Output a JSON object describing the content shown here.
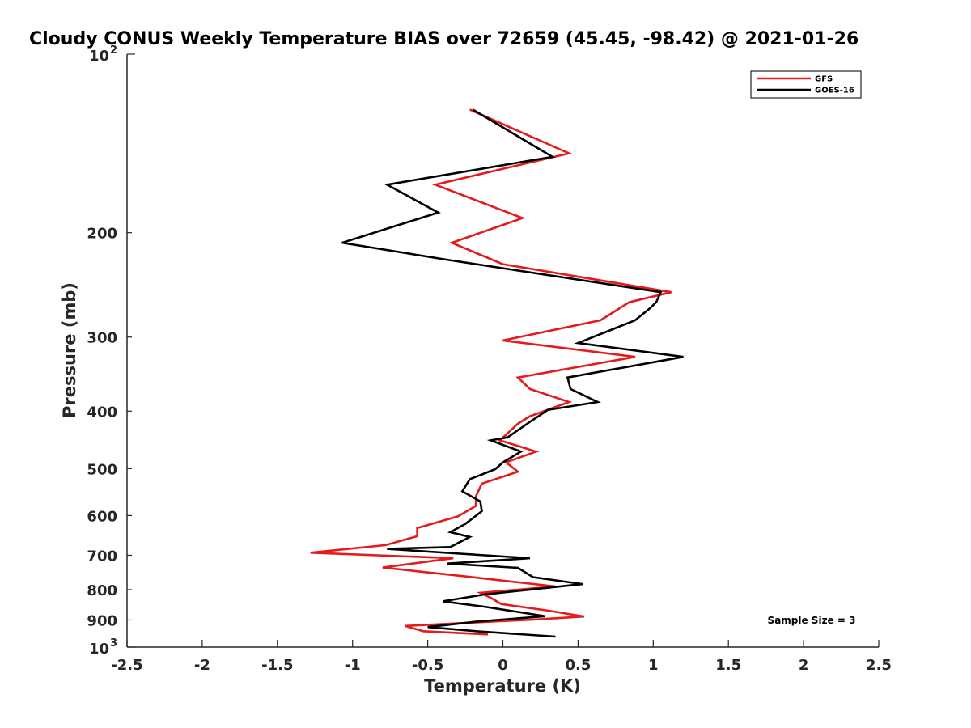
{
  "chart_data": {
    "type": "line",
    "title": "Cloudy CONUS Weekly Temperature BIAS over 72659 (45.45, -98.42) @ 2021-01-26",
    "xlabel": "Temperature (K)",
    "ylabel": "Pressure (mb)",
    "xlim": [
      -2.5,
      2.5
    ],
    "ylim": [
      100,
      1000
    ],
    "yscale": "log",
    "y_reversed": true,
    "grid": false,
    "legend_position": "top-right",
    "x_ticks": [
      -2.5,
      -2,
      -1.5,
      -1,
      -0.5,
      0,
      0.5,
      1,
      1.5,
      2,
      2.5
    ],
    "x_tick_labels": [
      "-2.5",
      "-2",
      "-1.5",
      "-1",
      "-0.5",
      "0",
      "0.5",
      "1",
      "1.5",
      "2",
      "2.5"
    ],
    "y_ticks": [
      200,
      300,
      400,
      500,
      600,
      700,
      800,
      900
    ],
    "y_tick_labels": [
      "200",
      "300",
      "400",
      "500",
      "600",
      "700",
      "800",
      "900"
    ],
    "y_end_labels": [
      {
        "value": 100,
        "base": "10",
        "exp": "2"
      },
      {
        "value": 1000,
        "base": "10",
        "exp": "3"
      }
    ],
    "series": [
      {
        "name": "GFS",
        "color": "#e41a1c",
        "points": [
          [
            -0.22,
            124
          ],
          [
            0.44,
            147
          ],
          [
            -0.45,
            166
          ],
          [
            0.13,
            189
          ],
          [
            -0.34,
            208
          ],
          [
            0.0,
            226
          ],
          [
            1.12,
            252
          ],
          [
            0.84,
            262
          ],
          [
            0.65,
            281
          ],
          [
            0.0,
            304
          ],
          [
            0.88,
            324
          ],
          [
            0.1,
            351
          ],
          [
            0.18,
            367
          ],
          [
            0.44,
            386
          ],
          [
            0.18,
            408
          ],
          [
            0.1,
            420
          ],
          [
            -0.02,
            448
          ],
          [
            0.22,
            468
          ],
          [
            0.02,
            488
          ],
          [
            0.1,
            506
          ],
          [
            -0.14,
            530
          ],
          [
            -0.18,
            557
          ],
          [
            -0.18,
            578
          ],
          [
            -0.3,
            602
          ],
          [
            -0.57,
            630
          ],
          [
            -0.57,
            650
          ],
          [
            -0.78,
            673
          ],
          [
            -1.28,
            693
          ],
          [
            -0.33,
            708
          ],
          [
            -0.8,
            734
          ],
          [
            -0.25,
            760
          ],
          [
            0.35,
            790
          ],
          [
            -0.15,
            810
          ],
          [
            -0.08,
            826
          ],
          [
            -0.01,
            846
          ],
          [
            0.3,
            868
          ],
          [
            0.54,
            888
          ],
          [
            0.22,
            898
          ],
          [
            -0.65,
            921
          ],
          [
            -0.53,
            940
          ],
          [
            -0.1,
            952
          ]
        ]
      },
      {
        "name": "GOES-16",
        "color": "#000000",
        "points": [
          [
            -0.2,
            124
          ],
          [
            0.33,
            149
          ],
          [
            -0.77,
            166
          ],
          [
            -0.43,
            185
          ],
          [
            -1.07,
            208
          ],
          [
            -0.38,
            222
          ],
          [
            1.05,
            252
          ],
          [
            1.02,
            262
          ],
          [
            0.98,
            268
          ],
          [
            0.88,
            281
          ],
          [
            0.5,
            307
          ],
          [
            1.2,
            324
          ],
          [
            0.43,
            351
          ],
          [
            0.45,
            367
          ],
          [
            0.63,
            386
          ],
          [
            0.3,
            398
          ],
          [
            0.18,
            417
          ],
          [
            0.03,
            443
          ],
          [
            -0.08,
            448
          ],
          [
            0.12,
            468
          ],
          [
            0.0,
            488
          ],
          [
            -0.05,
            501
          ],
          [
            -0.22,
            521
          ],
          [
            -0.27,
            546
          ],
          [
            -0.15,
            568
          ],
          [
            -0.14,
            590
          ],
          [
            -0.25,
            620
          ],
          [
            -0.35,
            640
          ],
          [
            -0.22,
            652
          ],
          [
            -0.35,
            678
          ],
          [
            -0.77,
            683
          ],
          [
            0.18,
            708
          ],
          [
            -0.37,
            723
          ],
          [
            0.1,
            735
          ],
          [
            0.2,
            762
          ],
          [
            0.53,
            783
          ],
          [
            -0.12,
            815
          ],
          [
            -0.4,
            837
          ],
          [
            -0.12,
            855
          ],
          [
            0.28,
            887
          ],
          [
            -0.18,
            906
          ],
          [
            -0.5,
            925
          ],
          [
            -0.18,
            940
          ],
          [
            0.35,
            960
          ]
        ]
      }
    ],
    "annotation": "Sample Size = 3"
  }
}
